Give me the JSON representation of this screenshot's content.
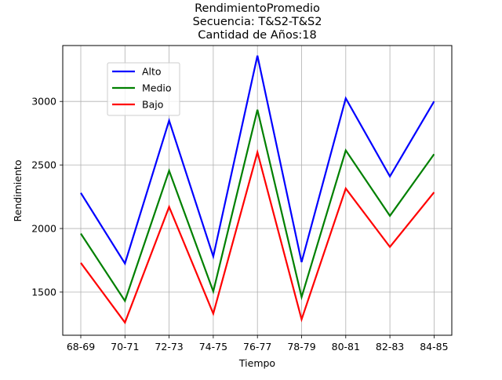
{
  "chart_data": {
    "type": "line",
    "title": [
      "RendimientoPromedio",
      "Secuencia: T&S2-T&S2",
      "Cantidad de Años:18"
    ],
    "xlabel": "Tiempo",
    "ylabel": "Rendimiento",
    "categories": [
      "68-69",
      "70-71",
      "72-73",
      "74-75",
      "76-77",
      "78-79",
      "80-81",
      "82-83",
      "84-85"
    ],
    "yticks": [
      1500,
      2000,
      2500,
      3000
    ],
    "ylim": [
      1160,
      3440
    ],
    "grid": true,
    "legend_position": "upper-left",
    "series": [
      {
        "name": "Alto",
        "color": "#0000ff",
        "values": [
          2280,
          1725,
          2850,
          1780,
          3360,
          1735,
          3025,
          2410,
          3000
        ]
      },
      {
        "name": "Medio",
        "color": "#008000",
        "values": [
          1960,
          1430,
          2455,
          1505,
          2935,
          1460,
          2615,
          2100,
          2585
        ]
      },
      {
        "name": "Bajo",
        "color": "#ff0000",
        "values": [
          1730,
          1260,
          2170,
          1330,
          2600,
          1285,
          2315,
          1855,
          2285
        ]
      }
    ]
  }
}
